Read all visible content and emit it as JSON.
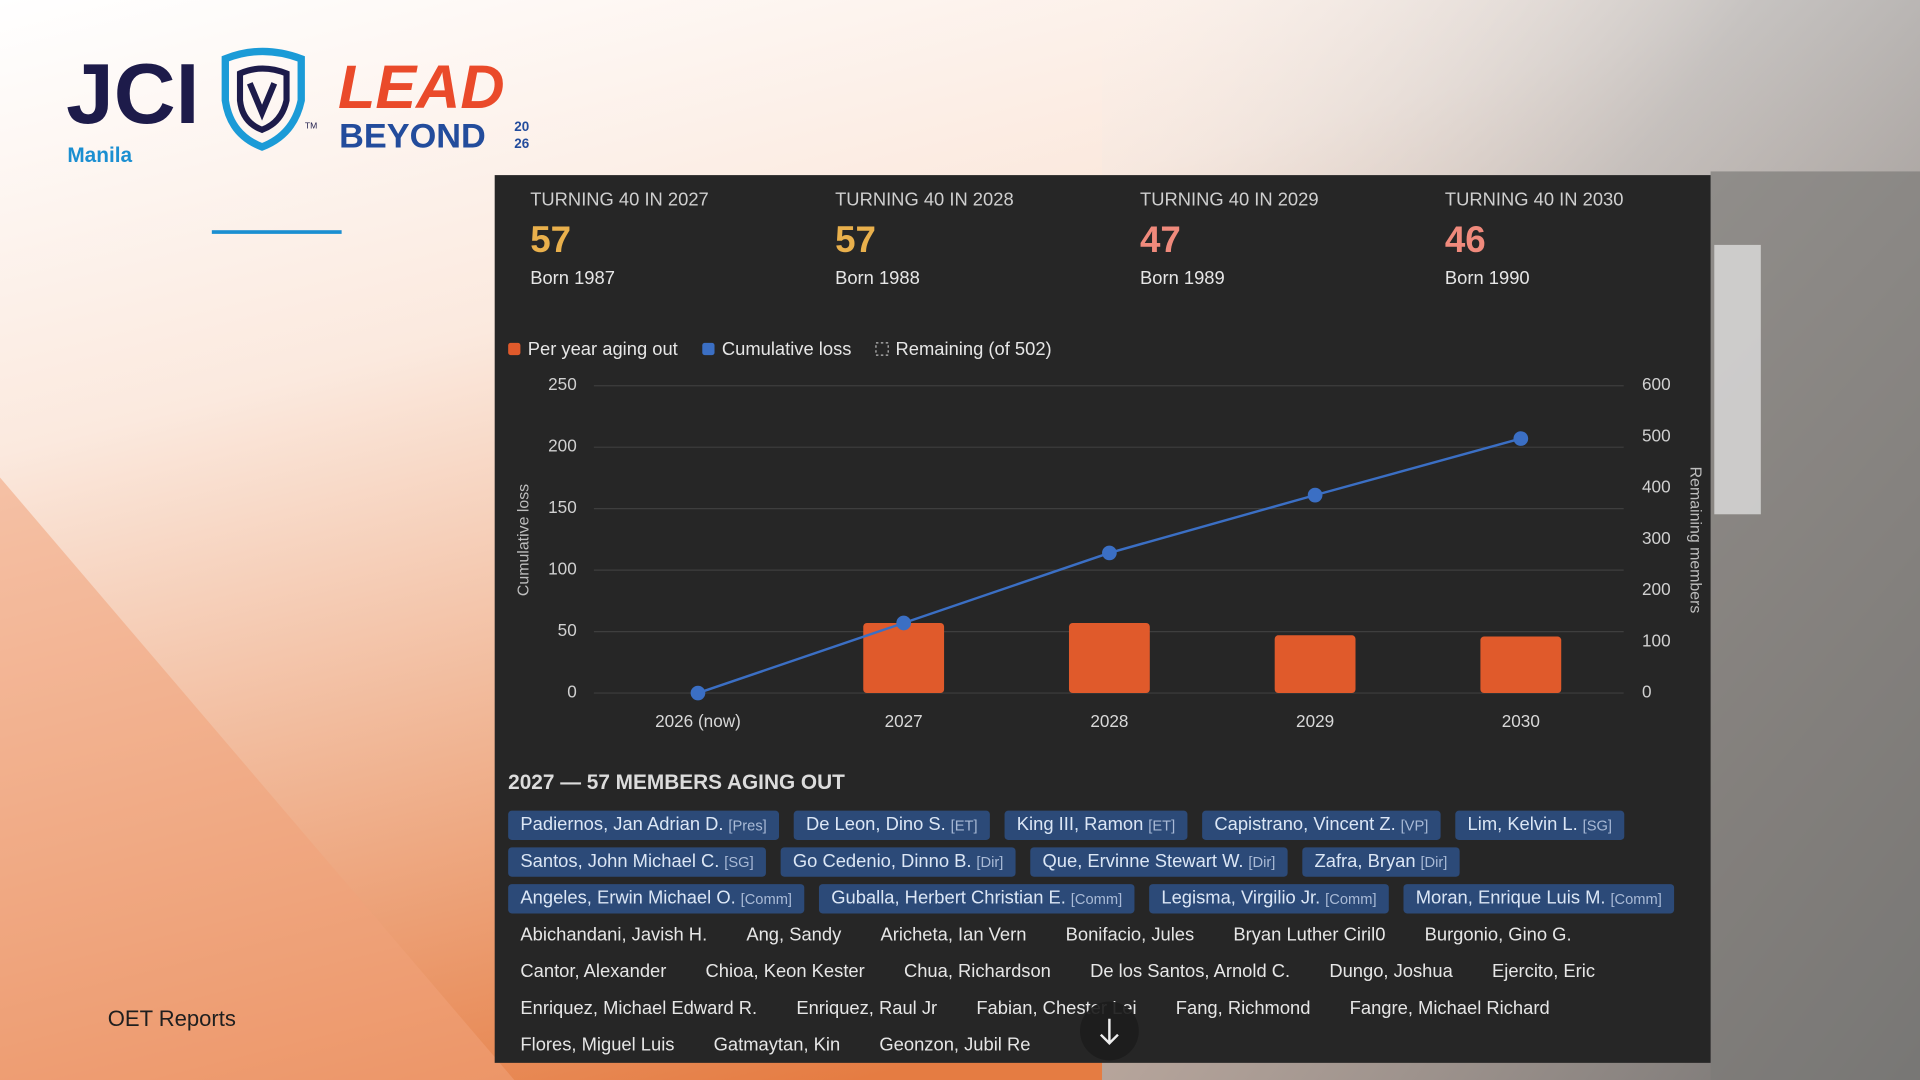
{
  "logo": {
    "org": "JCI",
    "chapter": "Manila",
    "trademark": "TM",
    "line1": "LEAD",
    "line2": "BEYOND",
    "year_top": "20",
    "year_bottom": "26"
  },
  "footer": "OET Reports",
  "cards": [
    {
      "label": "TURNING 40 IN 2027",
      "value": 57,
      "sub": "Born 1987",
      "color": "#e9b04c"
    },
    {
      "label": "TURNING 40 IN 2028",
      "value": 57,
      "sub": "Born 1988",
      "color": "#e9b04c"
    },
    {
      "label": "TURNING 40 IN 2029",
      "value": 47,
      "sub": "Born 1989",
      "color": "#f08a7c"
    },
    {
      "label": "TURNING 40 IN 2030",
      "value": 46,
      "sub": "Born 1990",
      "color": "#f08a7c"
    }
  ],
  "chart_data": {
    "type": "bar",
    "categories": [
      "2026 (now)",
      "2027",
      "2028",
      "2029",
      "2030"
    ],
    "series": [
      {
        "name": "Per year aging out",
        "type": "bar",
        "color": "#e05a2b",
        "values": [
          null,
          57,
          57,
          47,
          46
        ]
      },
      {
        "name": "Cumulative loss",
        "type": "line",
        "color": "#3b6fc4",
        "values": [
          0,
          57,
          114,
          161,
          207
        ]
      },
      {
        "name": "Remaining (of 502)",
        "type": "line",
        "axis": "y2",
        "hidden": true,
        "color": "#9a9a9a",
        "values": [
          null,
          null,
          null,
          null,
          null
        ]
      }
    ],
    "ylabel": "Cumulative loss",
    "y2label": "Remaining members",
    "ylim": [
      0,
      250
    ],
    "yticks": [
      0,
      50,
      100,
      150,
      200,
      250
    ],
    "y2lim": [
      0,
      600
    ],
    "y2ticks": [
      0,
      100,
      200,
      300,
      400,
      500,
      600
    ],
    "grid": true
  },
  "detail": {
    "title": "2027 — 57 MEMBERS AGING OUT",
    "members": [
      {
        "name": "Padiernos, Jan Adrian D.",
        "role": "[Pres]"
      },
      {
        "name": "De Leon, Dino S.",
        "role": "[ET]"
      },
      {
        "name": "King III, Ramon",
        "role": "[ET]"
      },
      {
        "name": "Capistrano, Vincent Z.",
        "role": "[VP]"
      },
      {
        "name": "Lim, Kelvin L.",
        "role": "[SG]"
      },
      {
        "name": "Santos, John Michael C.",
        "role": "[SG]"
      },
      {
        "name": "Go Cedenio, Dinno B.",
        "role": "[Dir]"
      },
      {
        "name": "Que, Ervinne Stewart W.",
        "role": "[Dir]"
      },
      {
        "name": "Zafra, Bryan",
        "role": "[Dir]"
      },
      {
        "name": "Angeles, Erwin Michael O.",
        "role": "[Comm]"
      },
      {
        "name": "Guballa, Herbert Christian E.",
        "role": "[Comm]"
      },
      {
        "name": "Legisma, Virgilio Jr.",
        "role": "[Comm]"
      },
      {
        "name": "Moran, Enrique Luis M.",
        "role": "[Comm]"
      },
      {
        "name": "Abichandani, Javish H."
      },
      {
        "name": "Ang, Sandy"
      },
      {
        "name": "Aricheta, Ian Vern"
      },
      {
        "name": "Bonifacio, Jules"
      },
      {
        "name": "Bryan Luther Ciril0"
      },
      {
        "name": "Burgonio, Gino G."
      },
      {
        "name": "Cantor, Alexander"
      },
      {
        "name": "Chioa, Keon Kester"
      },
      {
        "name": "Chua, Richardson"
      },
      {
        "name": "De los Santos, Arnold C."
      },
      {
        "name": "Dungo, Joshua"
      },
      {
        "name": "Ejercito, Eric"
      },
      {
        "name": "Enriquez, Michael Edward R."
      },
      {
        "name": "Enriquez, Raul Jr"
      },
      {
        "name": "Fabian, Chester Lei"
      },
      {
        "name": "Fang, Richmond"
      },
      {
        "name": "Fangre, Michael Richard"
      },
      {
        "name": "Flores, Miguel Luis"
      },
      {
        "name": "Gatmaytan, Kin"
      },
      {
        "name": "Geonzon, Jubil Re"
      }
    ]
  }
}
